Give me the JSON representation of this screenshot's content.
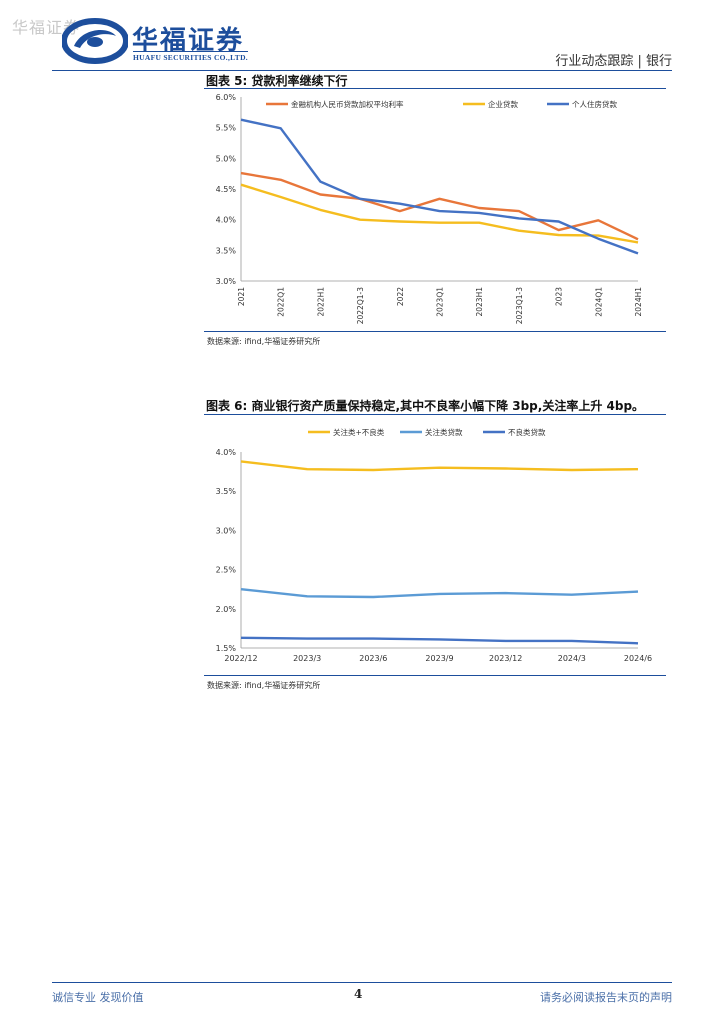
{
  "header": {
    "watermark": "华福证券",
    "logo_name": "华福证券",
    "logo_en": "HUAFU SECURITIES CO.,LTD.",
    "right": "行业动态跟踪 | 银行"
  },
  "figure5": {
    "title": "图表 5:  贷款利率继续下行",
    "source": "数据来源:  ifind,华福证券研究所"
  },
  "figure6": {
    "title": "图表 6:  商业银行资产质量保持稳定,其中不良率小幅下降 3bp,关注率上升 4bp。",
    "source": "数据来源:  ifind,华福证券研究所"
  },
  "footer": {
    "left": "诚信专业   发现价值",
    "page": "4",
    "right": "请务必阅读报告末页的声明"
  },
  "chart_data": [
    {
      "type": "line",
      "title": "贷款利率继续下行",
      "x": [
        "2021",
        "2022Q1",
        "2022H1",
        "2022Q1-3",
        "2022",
        "2023Q1",
        "2023H1",
        "2023Q1-3",
        "2023",
        "2024Q1",
        "2024H1"
      ],
      "ylim": [
        3.0,
        6.0
      ],
      "yticks": [
        "3.0%",
        "3.5%",
        "4.0%",
        "4.5%",
        "5.0%",
        "5.5%",
        "6.0%"
      ],
      "legend_position": "top",
      "series": [
        {
          "name": "金融机构人民币贷款加权平均利率",
          "color": "#e8763a",
          "values": [
            4.76,
            4.65,
            4.41,
            4.34,
            4.14,
            4.34,
            4.19,
            4.14,
            3.83,
            3.99,
            3.68
          ]
        },
        {
          "name": "企业贷款",
          "color": "#f5bd1f",
          "values": [
            4.57,
            4.37,
            4.16,
            4.0,
            3.97,
            3.95,
            3.95,
            3.82,
            3.75,
            3.74,
            3.63
          ]
        },
        {
          "name": "个人住房贷款",
          "color": "#4472c4",
          "values": [
            5.63,
            5.49,
            4.62,
            4.34,
            4.26,
            4.14,
            4.11,
            4.02,
            3.97,
            3.69,
            3.45
          ]
        }
      ]
    },
    {
      "type": "line",
      "title": "商业银行资产质量",
      "x": [
        "2022/12",
        "2023/3",
        "2023/6",
        "2023/9",
        "2023/12",
        "2024/3",
        "2024/6"
      ],
      "ylim": [
        1.5,
        4.0
      ],
      "yticks": [
        "1.5%",
        "2.0%",
        "2.5%",
        "3.0%",
        "3.5%",
        "4.0%"
      ],
      "legend_position": "top",
      "series": [
        {
          "name": "关注类+不良类",
          "color": "#f5bd1f",
          "values": [
            3.88,
            3.78,
            3.77,
            3.8,
            3.79,
            3.77,
            3.78
          ]
        },
        {
          "name": "关注类贷款",
          "color": "#5b9bd5",
          "values": [
            2.25,
            2.16,
            2.15,
            2.19,
            2.2,
            2.18,
            2.22
          ]
        },
        {
          "name": "不良类贷款",
          "color": "#4472c4",
          "values": [
            1.63,
            1.62,
            1.62,
            1.61,
            1.59,
            1.59,
            1.56
          ]
        }
      ]
    }
  ]
}
